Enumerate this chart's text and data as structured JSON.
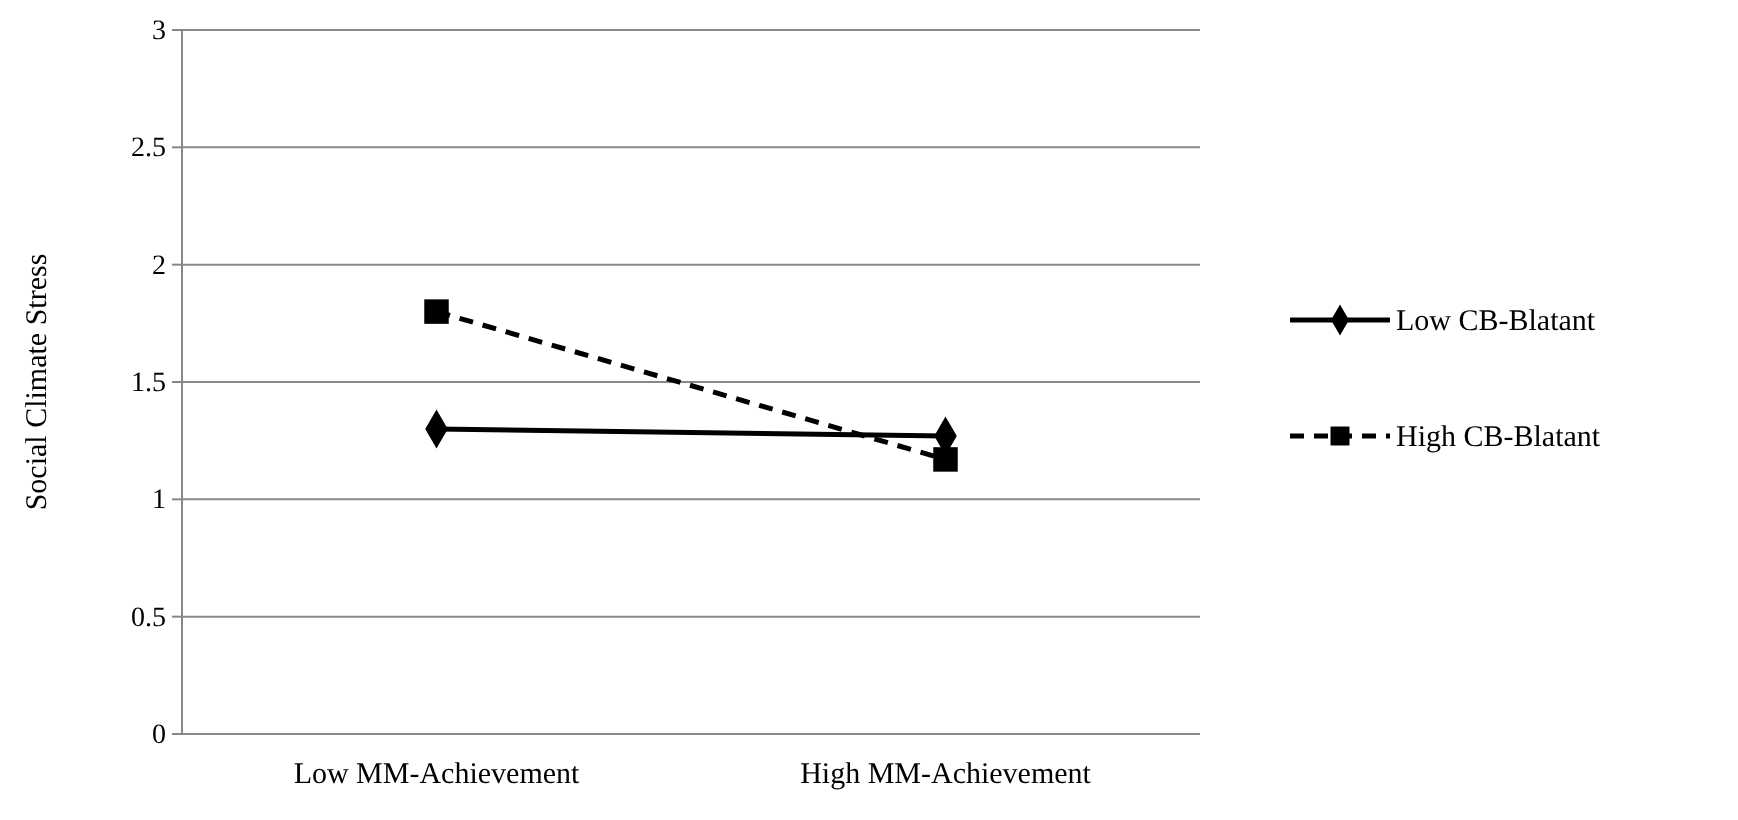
{
  "chart_data": {
    "type": "line",
    "ylabel": "Social Climate Stress",
    "categories": [
      "Low MM-Achievement",
      "High MM-Achievement"
    ],
    "series": [
      {
        "name": "Low CB-Blatant",
        "color": "#000000",
        "values": [
          1.3,
          1.27
        ],
        "marker": "diamond",
        "line_style": "solid"
      },
      {
        "name": "High CB-Blatant",
        "color": "#000000",
        "values": [
          1.8,
          1.17
        ],
        "marker": "square",
        "line_style": "dashed"
      }
    ],
    "ylim": [
      0,
      3
    ],
    "yticks": [
      0,
      0.5,
      1,
      1.5,
      2,
      2.5,
      3
    ],
    "grid": "y",
    "legend": "right"
  }
}
